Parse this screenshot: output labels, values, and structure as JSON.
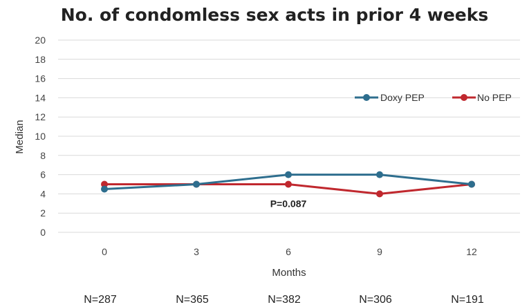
{
  "chart_data": {
    "type": "line",
    "title": "No. of condomless sex acts in prior 4 weeks",
    "xlabel": "Months",
    "ylabel": "Median",
    "x": [
      0,
      3,
      6,
      9,
      12
    ],
    "x_tick_labels": [
      "0",
      "3",
      "6",
      "9",
      "12"
    ],
    "y_ticks": [
      0,
      2,
      4,
      6,
      8,
      10,
      12,
      14,
      16,
      18,
      20
    ],
    "y_tick_labels": [
      "0",
      "2",
      "4",
      "6",
      "8",
      "10",
      "12",
      "14",
      "16",
      "18",
      "20"
    ],
    "ylim": [
      0,
      20
    ],
    "grid": true,
    "legend_position": "top-right",
    "series": [
      {
        "name": "Doxy PEP",
        "color": "#2e6e8e",
        "values": [
          4.5,
          5,
          6,
          6,
          5
        ]
      },
      {
        "name": "No PEP",
        "color": "#c0282e",
        "values": [
          5,
          5,
          5,
          4,
          5
        ]
      }
    ],
    "annotation": {
      "text": "P=0.087",
      "x": 6,
      "y": 3
    },
    "n_labels": [
      "N=287",
      "N=365",
      "N=382",
      "N=306",
      "N=191"
    ]
  }
}
